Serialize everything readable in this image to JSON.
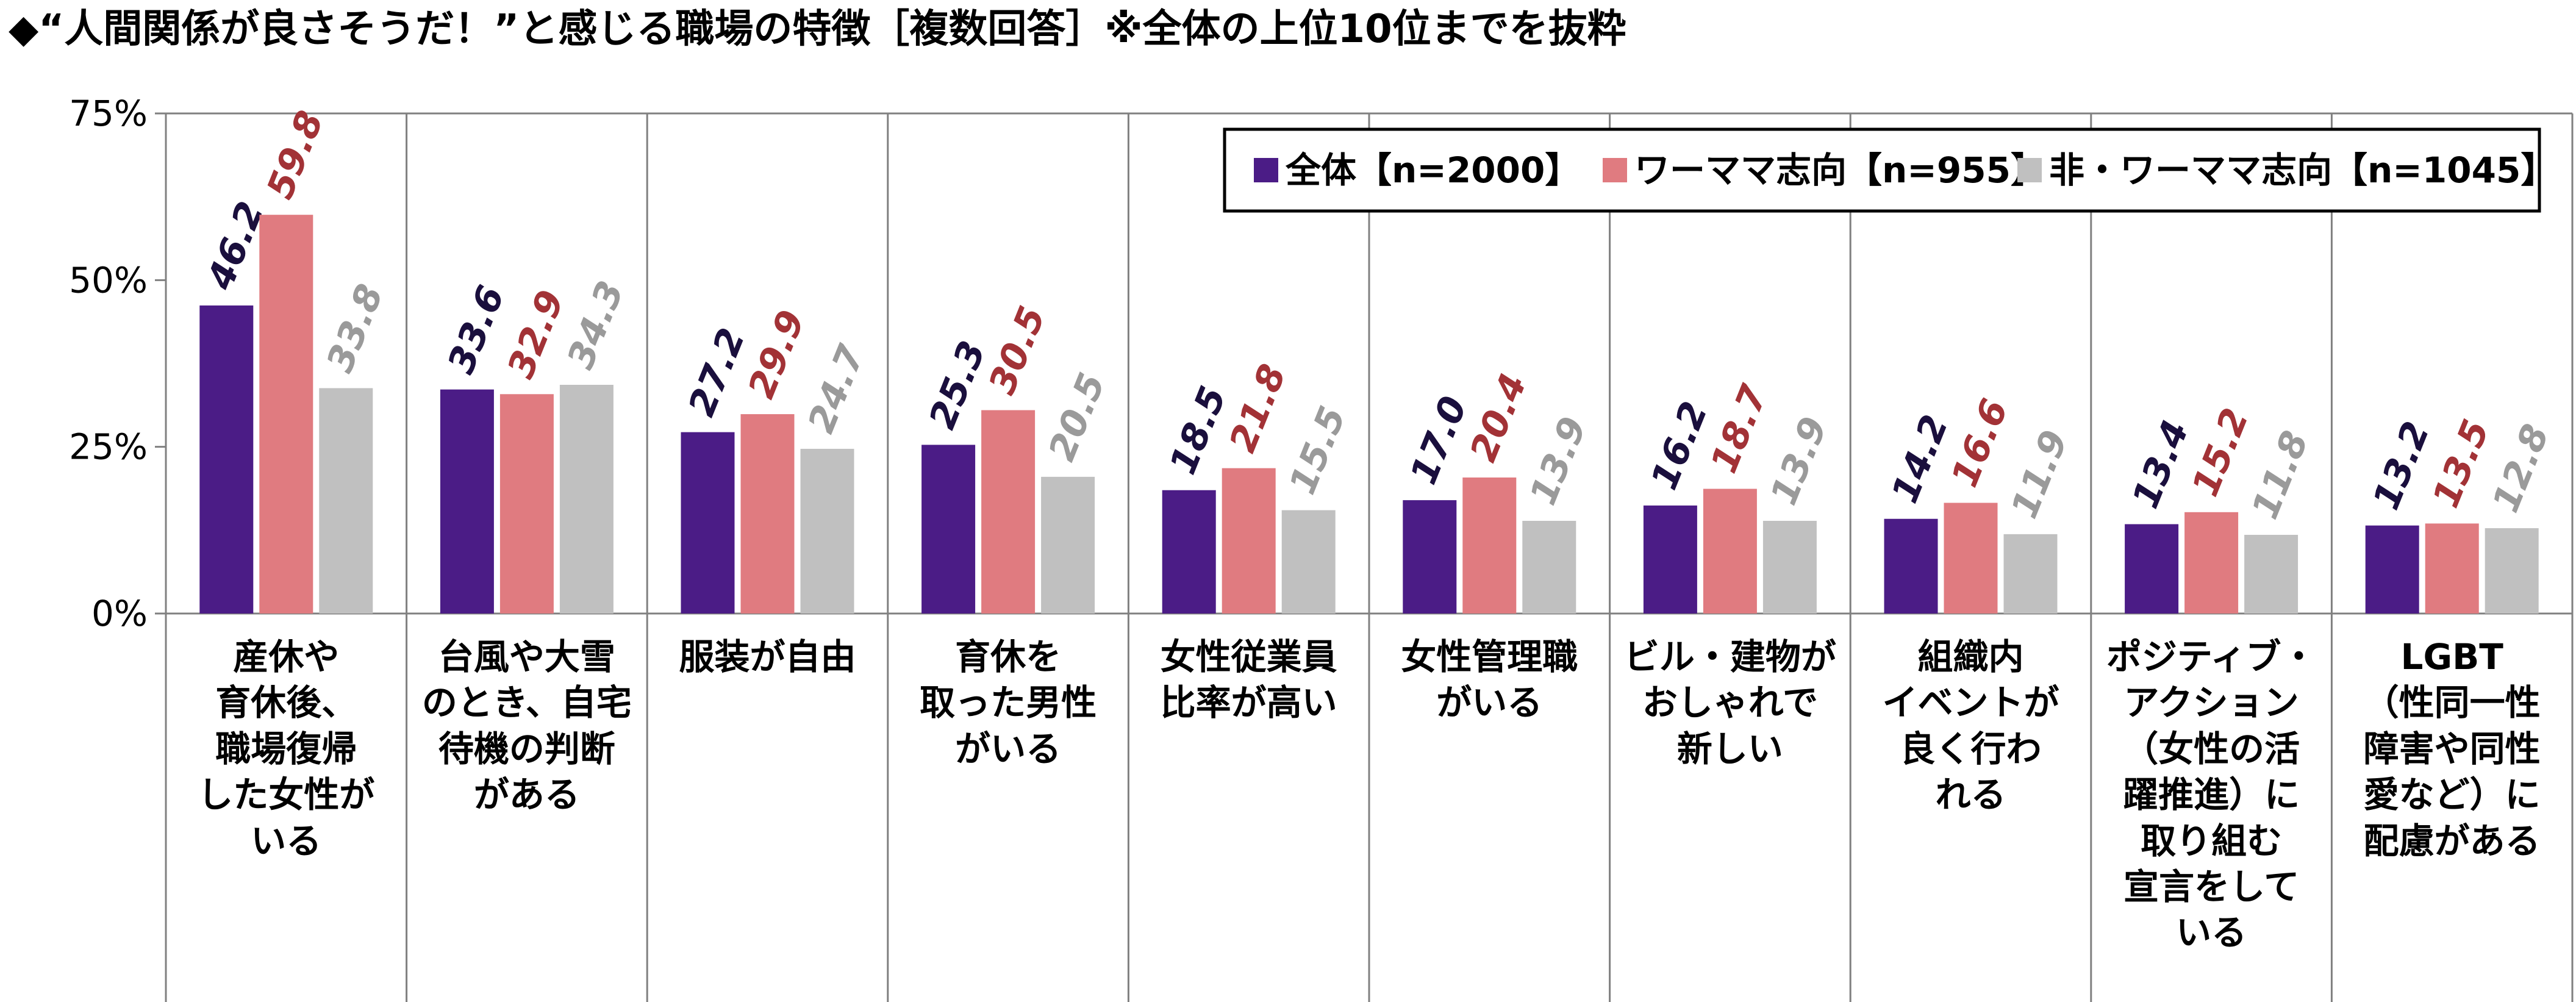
{
  "title": "◆“人間関係が良さそうだ！”と感じる職場の特徴［複数回答］※全体の上位10位までを抜粋",
  "colors": {
    "all": "#4b1c86",
    "wmama": "#e07b80",
    "non": "#c0c0c0",
    "axis": "#808080",
    "label_all": "#1a0f3d",
    "label_wmama": "#a23236",
    "label_non": "#9a9a9a"
  },
  "chart_data": {
    "type": "bar",
    "title": "◆“人間関係が良さそうだ！”と感じる職場の特徴［複数回答］※全体の上位10位までを抜粋",
    "xlabel": "",
    "ylabel": "",
    "ylim": [
      0,
      75
    ],
    "yticks": [
      "0%",
      "25%",
      "50%",
      "75%"
    ],
    "legend_position": "top-right",
    "grid": false,
    "categories": [
      [
        "産休や",
        "育休後、",
        "職場復帰",
        "した女性が",
        "いる"
      ],
      [
        "台風や大雪",
        "のとき、自宅",
        "待機の判断",
        "がある"
      ],
      [
        "服装が自由"
      ],
      [
        "育休を",
        "取った男性",
        "がいる"
      ],
      [
        "女性従業員",
        "比率が高い"
      ],
      [
        "女性管理職",
        "がいる"
      ],
      [
        "ビル・建物が",
        "おしゃれで",
        "新しい"
      ],
      [
        "組織内",
        "イベントが",
        "良く行わ",
        "れる"
      ],
      [
        "ポジティブ・",
        "アクション",
        "（女性の活",
        "躍推進）に",
        "取り組む",
        "宣言をして",
        "いる"
      ],
      [
        "LGBT",
        "（性同一性",
        "障害や同性",
        "愛など）に",
        "配慮がある"
      ]
    ],
    "series": [
      {
        "name": "全体【n=2000】",
        "values": [
          46.2,
          33.6,
          27.2,
          25.3,
          18.5,
          17.0,
          16.2,
          14.2,
          13.4,
          13.2
        ],
        "labels": [
          "46.2",
          "33.6",
          "27.2",
          "25.3",
          "18.5",
          "17.0",
          "16.2",
          "14.2",
          "13.4",
          "13.2"
        ]
      },
      {
        "name": "ワーママ志向【n=955】",
        "values": [
          59.8,
          32.9,
          29.9,
          30.5,
          21.8,
          20.4,
          18.7,
          16.6,
          15.2,
          13.5
        ],
        "labels": [
          "59.8",
          "32.9",
          "29.9",
          "30.5",
          "21.8",
          "20.4",
          "18.7",
          "16.6",
          "15.2",
          "13.5"
        ]
      },
      {
        "name": "非・ワーママ志向【n=1045】",
        "values": [
          33.8,
          34.3,
          24.7,
          20.5,
          15.5,
          13.9,
          13.9,
          11.9,
          11.8,
          12.8
        ],
        "labels": [
          "33.8",
          "34.3",
          "24.7",
          "20.5",
          "15.5",
          "13.9",
          "13.9",
          "11.9",
          "11.8",
          "12.8"
        ]
      }
    ]
  }
}
